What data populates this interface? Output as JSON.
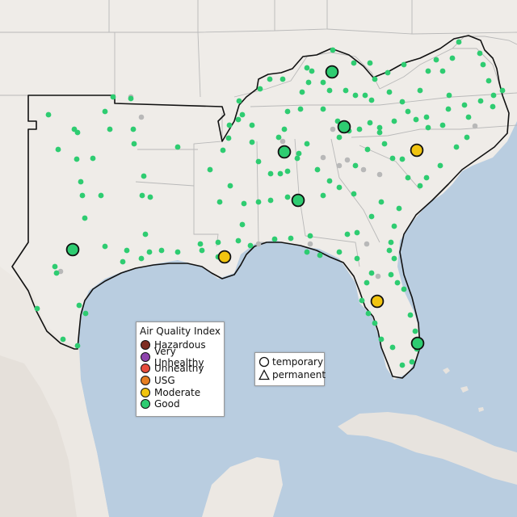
{
  "map": {
    "colors": {
      "water": "#b9cde0",
      "land": "#efece8",
      "land_mexico": "#ece8e3",
      "hills": "#e3ddd6",
      "cuba": "#e7e3de",
      "state_border": "#b9b9b9",
      "region_border": "#111111",
      "good": "#2ecc71",
      "moderate": "#f1c40f",
      "no_data": "#b8b8b8"
    },
    "region_outline": "Southeast US region incl. Texas, Oklahoma, Arkansas, Louisiana, Mississippi, Alabama, Tennessee, Kentucky, Georgia, Florida, South Carolina, North Carolina, Virginia"
  },
  "legend": {
    "title": "Air Quality Index",
    "levels": [
      {
        "label": "Hazardous",
        "color": "#7e2d22"
      },
      {
        "label": "Very Unhealthy",
        "color": "#8e44ad"
      },
      {
        "label": "Unhealthy",
        "color": "#e74c3c"
      },
      {
        "label": "USG",
        "color": "#e67e22"
      },
      {
        "label": "Moderate",
        "color": "#f1c40f"
      },
      {
        "label": "Good",
        "color": "#2ecc71"
      }
    ]
  },
  "type_legend": {
    "temporary": "temporary",
    "permanent": "permanent"
  }
}
